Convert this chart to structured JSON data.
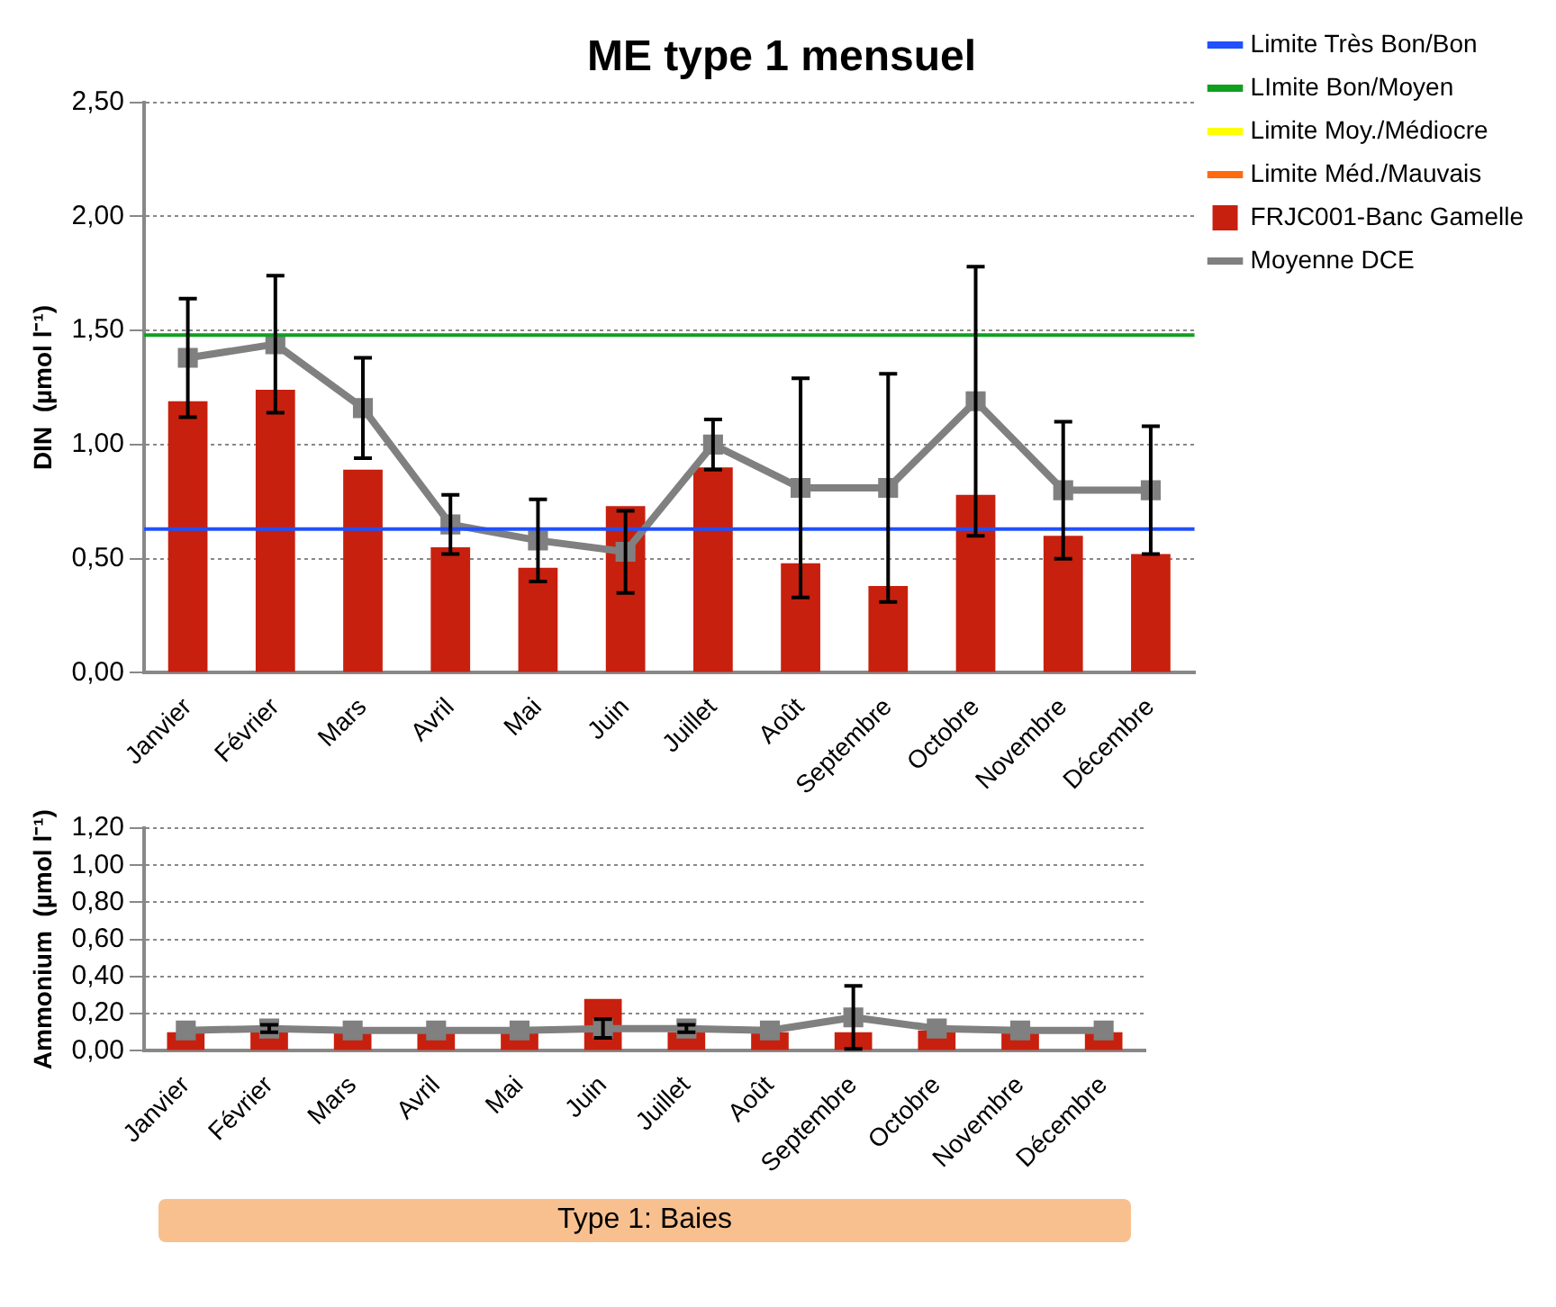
{
  "chart_data": [
    {
      "type": "bar",
      "title": "ME type 1 mensuel",
      "ylabel": "DIN  (µmol l⁻¹)",
      "categories": [
        "Janvier",
        "Février",
        "Mars",
        "Avril",
        "Mai",
        "Juin",
        "Juillet",
        "Août",
        "Septembre",
        "Octobre",
        "Novembre",
        "Décembre"
      ],
      "series": [
        {
          "name": "FRJC001-Banc Gamelle",
          "color": "#c8200e",
          "values": [
            1.19,
            1.24,
            0.89,
            0.55,
            0.46,
            0.73,
            0.9,
            0.48,
            0.38,
            0.78,
            0.6,
            0.52
          ]
        },
        {
          "name": "Moyenne DCE",
          "type": "line",
          "color": "#808080",
          "marker": "square",
          "values": [
            1.38,
            1.44,
            1.16,
            0.65,
            0.58,
            0.53,
            1.0,
            0.81,
            0.81,
            1.19,
            0.8,
            0.8
          ],
          "errors": [
            0.26,
            0.3,
            0.22,
            0.13,
            0.18,
            0.18,
            0.11,
            0.48,
            0.5,
            0.59,
            0.3,
            0.28
          ]
        }
      ],
      "ref_lines": [
        {
          "axis": "y",
          "value": 0.63,
          "label": "Limite Très Bon/Bon",
          "color": "#2050ff"
        },
        {
          "axis": "y",
          "value": 1.48,
          "label": "LImite Bon/Moyen",
          "color": "#10a020"
        },
        {
          "axis": "y",
          "value": null,
          "label": "Limite Moy./Médiocre",
          "color": "#ffff00"
        },
        {
          "axis": "y",
          "value": null,
          "label": "Limite Méd./Mauvais",
          "color": "#ff6a10"
        }
      ],
      "ylim": [
        0,
        2.5
      ],
      "yticks": [
        {
          "value": 0,
          "label": "0,00"
        },
        {
          "value": 0.5,
          "label": "0,50"
        },
        {
          "value": 1,
          "label": "1,00"
        },
        {
          "value": 1.5,
          "label": "1,50"
        },
        {
          "value": 2,
          "label": "2,00"
        },
        {
          "value": 2.5,
          "label": "2,50"
        }
      ],
      "grid": "y",
      "legend": "top right"
    },
    {
      "type": "bar",
      "ylabel": "Ammonium  (µmol l⁻¹)",
      "categories": [
        "Janvier",
        "Février",
        "Mars",
        "Avril",
        "Mai",
        "Juin",
        "Juillet",
        "Août",
        "Septembre",
        "Octobre",
        "Novembre",
        "Décembre"
      ],
      "series": [
        {
          "color": "#c8200e",
          "values": [
            0.1,
            0.11,
            0.1,
            0.1,
            0.1,
            0.28,
            0.1,
            0.1,
            0.1,
            0.11,
            0.1,
            0.1
          ]
        },
        {
          "type": "line",
          "color": "#808080",
          "marker": "square",
          "values": [
            0.11,
            0.12,
            0.11,
            0.11,
            0.11,
            0.12,
            0.12,
            0.11,
            0.18,
            0.12,
            0.11,
            0.11
          ],
          "errors": [
            null,
            0.02,
            null,
            null,
            null,
            0.05,
            0.02,
            null,
            0.17,
            null,
            null,
            null
          ]
        }
      ],
      "ylim": [
        0,
        1.2
      ],
      "yticks": [
        {
          "value": 0,
          "label": "0,00"
        },
        {
          "value": 0.2,
          "label": "0,20"
        },
        {
          "value": 0.4,
          "label": "0,40"
        },
        {
          "value": 0.6,
          "label": "0,60"
        },
        {
          "value": 0.8,
          "label": "0,80"
        },
        {
          "value": 1,
          "label": "1,00"
        },
        {
          "value": 1.2,
          "label": "1,20"
        }
      ],
      "grid": "y",
      "annotations": [
        "Type 1: Baies"
      ]
    }
  ]
}
